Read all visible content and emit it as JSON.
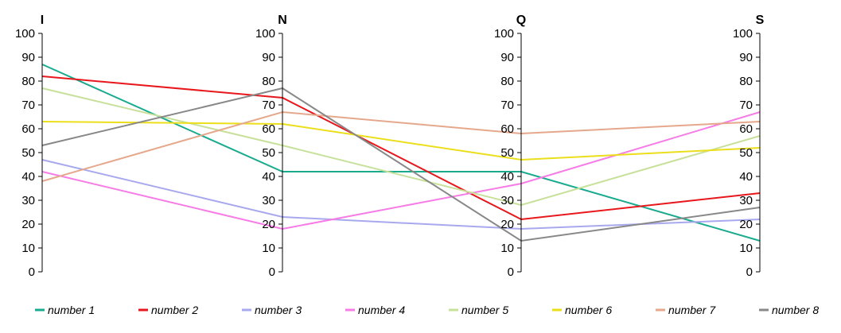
{
  "chart_data": {
    "type": "line",
    "subtype": "parallel-coordinates",
    "axes": [
      {
        "name": "I",
        "ticks": [
          "0",
          "10",
          "20",
          "30",
          "40",
          "50",
          "60",
          "70",
          "80",
          "90",
          "100"
        ]
      },
      {
        "name": "N",
        "ticks": [
          "0",
          "10",
          "20",
          "30",
          "40",
          "50",
          "60",
          "70",
          "80",
          "90",
          "100"
        ]
      },
      {
        "name": "Q",
        "ticks": [
          "0",
          "10",
          "20",
          "30",
          "40",
          "50",
          "60",
          "70",
          "80",
          "90",
          "100"
        ]
      },
      {
        "name": "S",
        "ticks": [
          "0",
          "10",
          "20",
          "30",
          "40",
          "50",
          "60",
          "70",
          "80",
          "90",
          "100"
        ]
      }
    ],
    "ylim": [
      0,
      100
    ],
    "grid": false,
    "legend_position": "bottom",
    "series": [
      {
        "name": "number 1",
        "color": "#1aab8f",
        "values": [
          87,
          42,
          42,
          13
        ]
      },
      {
        "name": "number 2",
        "color": "#e8171c",
        "values": [
          82,
          73,
          22,
          33
        ]
      },
      {
        "name": "number 3",
        "color": "#a8a8ee",
        "values": [
          47,
          23,
          18,
          22
        ]
      },
      {
        "name": "number 4",
        "color": "#f77ce6",
        "values": [
          42,
          18,
          37,
          67
        ]
      },
      {
        "name": "number 5",
        "color": "#c7e09a",
        "values": [
          77,
          53,
          28,
          57
        ]
      },
      {
        "name": "number 6",
        "color": "#eadf1a",
        "values": [
          63,
          62,
          47,
          52
        ]
      },
      {
        "name": "number 7",
        "color": "#e5a88c",
        "values": [
          38,
          67,
          58,
          63
        ]
      },
      {
        "name": "number 8",
        "color": "#888888",
        "values": [
          53,
          77,
          13,
          27
        ]
      }
    ]
  }
}
